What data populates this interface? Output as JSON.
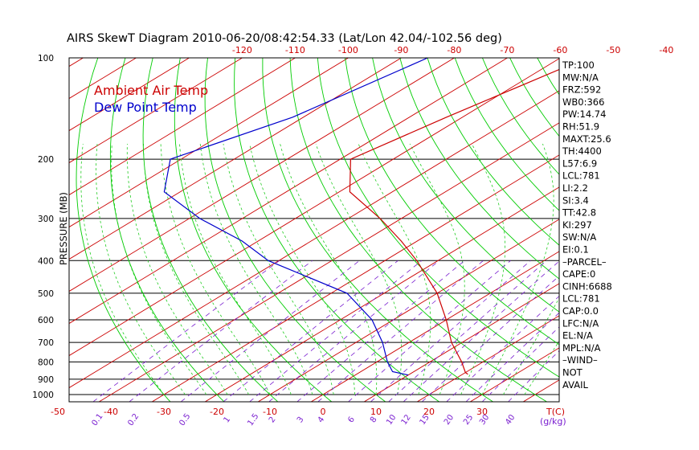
{
  "title": "AIRS SkewT Diagram 2010-06-20/08:42:54.33 (Lat/Lon 42.04/-102.56 deg)",
  "legend": {
    "ambient": "Ambient Air Temp",
    "dewpoint": "Dew Point Temp"
  },
  "colors": {
    "isotherm": "#cc0000",
    "dry_adiabat": "#00cc00",
    "moist_adiabat": "#22cc22",
    "mixing_ratio": "#7a1fd0",
    "temperature": "#cc0000",
    "dewpoint": "#0000cc",
    "frame": "#000000"
  },
  "chart_data": {
    "type": "line",
    "ylabel": "PRESSURE (MB)",
    "pressure_ticks": [
      "100",
      "200",
      "300",
      "400",
      "500",
      "600",
      "700",
      "800",
      "900",
      "1000"
    ],
    "pressure_values": [
      100,
      200,
      300,
      400,
      500,
      600,
      700,
      800,
      900,
      1000
    ],
    "top_temp_ticks": [
      "-120",
      "-110",
      "-100",
      "-90",
      "-80",
      "-70",
      "-60",
      "-50",
      "-40"
    ],
    "bottom_temp_ticks": [
      "-50",
      "-40",
      "-30",
      "-20",
      "-10",
      "0",
      "10",
      "20",
      "30"
    ],
    "bottom_axis_unit": "T(C)",
    "mixing_ratio_ticks": [
      "0.1",
      "0.2",
      "0.5",
      "1",
      "1.5",
      "2",
      "3",
      "4",
      "6",
      "8",
      "10",
      "12",
      "15",
      "20",
      "25",
      "30",
      "40"
    ],
    "mixing_ratio_unit": "(g/kg)",
    "series": [
      {
        "name": "Ambient Air Temp",
        "points": [
          {
            "p": 100,
            "t": -55
          },
          {
            "p": 150,
            "t": -63
          },
          {
            "p": 200,
            "t": -68
          },
          {
            "p": 250,
            "t": -58
          },
          {
            "p": 300,
            "t": -44
          },
          {
            "p": 350,
            "t": -33
          },
          {
            "p": 400,
            "t": -24
          },
          {
            "p": 500,
            "t": -10
          },
          {
            "p": 600,
            "t": 0
          },
          {
            "p": 700,
            "t": 8
          },
          {
            "p": 800,
            "t": 16
          },
          {
            "p": 860,
            "t": 20
          },
          {
            "p": 870,
            "t": 21
          }
        ]
      },
      {
        "name": "Dew Point Temp",
        "points": [
          {
            "p": 100,
            "t": -85
          },
          {
            "p": 150,
            "t": -92
          },
          {
            "p": 200,
            "t": -102
          },
          {
            "p": 250,
            "t": -93
          },
          {
            "p": 300,
            "t": -78
          },
          {
            "p": 350,
            "t": -63
          },
          {
            "p": 400,
            "t": -52
          },
          {
            "p": 500,
            "t": -27
          },
          {
            "p": 600,
            "t": -14
          },
          {
            "p": 700,
            "t": -5
          },
          {
            "p": 800,
            "t": 2
          },
          {
            "p": 855,
            "t": 6
          },
          {
            "p": 875,
            "t": 10
          }
        ]
      }
    ]
  },
  "indices": [
    "TP:100",
    "MW:N/A",
    "FRZ:592",
    "WB0:366",
    "PW:14.74",
    "RH:51.9",
    "MAXT:25.6",
    "TH:4400",
    "L57:6.9",
    "LCL:781",
    "LI:2.2",
    "SI:3.4",
    "TT:42.8",
    "KI:297",
    "SW:N/A",
    "EI:0.1",
    "–PARCEL–",
    "CAPE:0",
    "CINH:6688",
    "LCL:781",
    "CAP:0.0",
    "LFC:N/A",
    "EL:N/A",
    "MPL:N/A",
    "–WIND–",
    " NOT",
    " AVAIL"
  ]
}
